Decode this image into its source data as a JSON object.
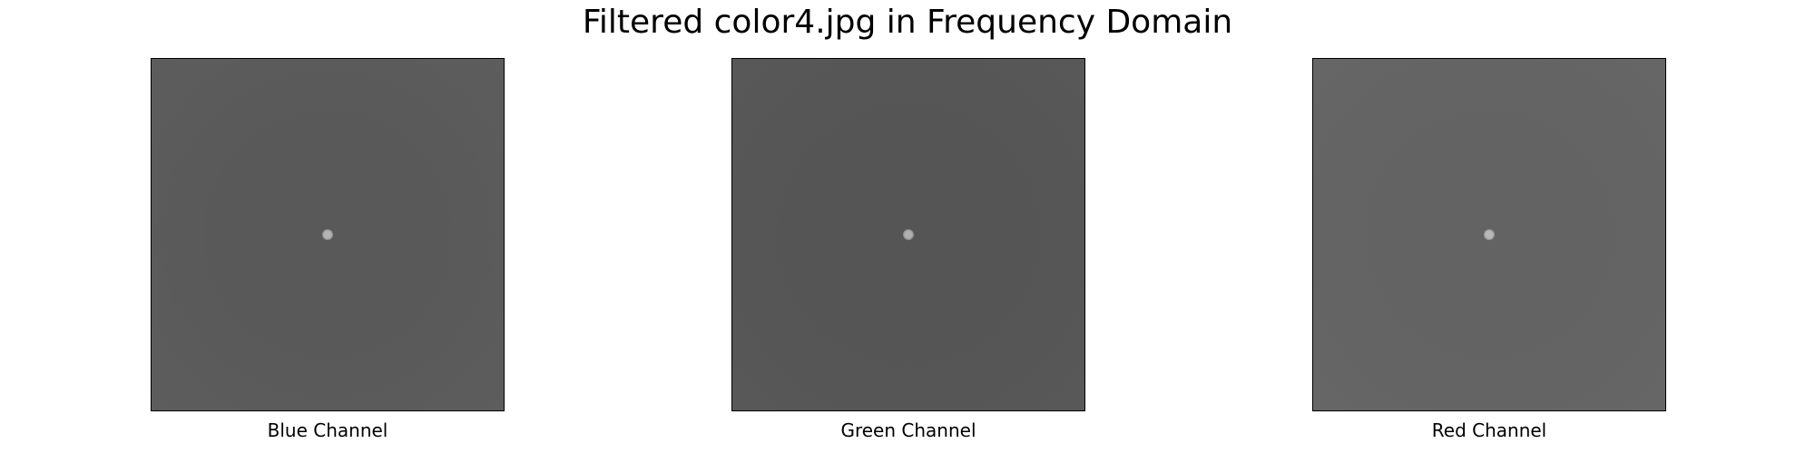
{
  "title": "Filtered color4.jpg in Frequency Domain",
  "panels": [
    {
      "label": "Blue Channel",
      "background_color": "#595959",
      "edge_color": "#5d5d5d",
      "center_dot_color": "#b3b3b3"
    },
    {
      "label": "Green Channel",
      "background_color": "#555555",
      "edge_color": "#585858",
      "center_dot_color": "#b0b0b0"
    },
    {
      "label": "Red Channel",
      "background_color": "#636363",
      "edge_color": "#666666",
      "center_dot_color": "#b8b8b8"
    }
  ]
}
